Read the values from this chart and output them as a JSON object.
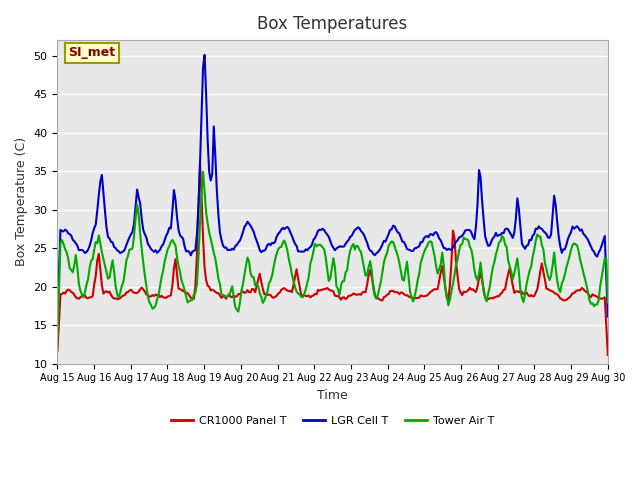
{
  "title": "Box Temperatures",
  "xlabel": "Time",
  "ylabel": "Box Temperature (C)",
  "ylim": [
    10,
    52
  ],
  "yticks": [
    10,
    15,
    20,
    25,
    30,
    35,
    40,
    45,
    50
  ],
  "bg_color": "#e8e8e8",
  "fig_color": "#ffffff",
  "series": {
    "CR1000 Panel T": {
      "color": "#cc0000",
      "lw": 1.5
    },
    "LGR Cell T": {
      "color": "#0000cc",
      "lw": 1.5
    },
    "Tower Air T": {
      "color": "#00aa00",
      "lw": 1.5
    }
  },
  "xtick_labels": [
    "Aug 15",
    "Aug 16",
    "Aug 17",
    "Aug 18",
    "Aug 19",
    "Aug 20",
    "Aug 21",
    "Aug 22",
    "Aug 23",
    "Aug 24",
    "Aug 25",
    "Aug 26",
    "Aug 27",
    "Aug 28",
    "Aug 29",
    "Aug 30"
  ],
  "annotation": "SI_met",
  "annotation_bbox": {
    "facecolor": "#ffffcc",
    "edgecolor": "#999900"
  },
  "annotation_text_color": "#880000",
  "n_points": 360
}
